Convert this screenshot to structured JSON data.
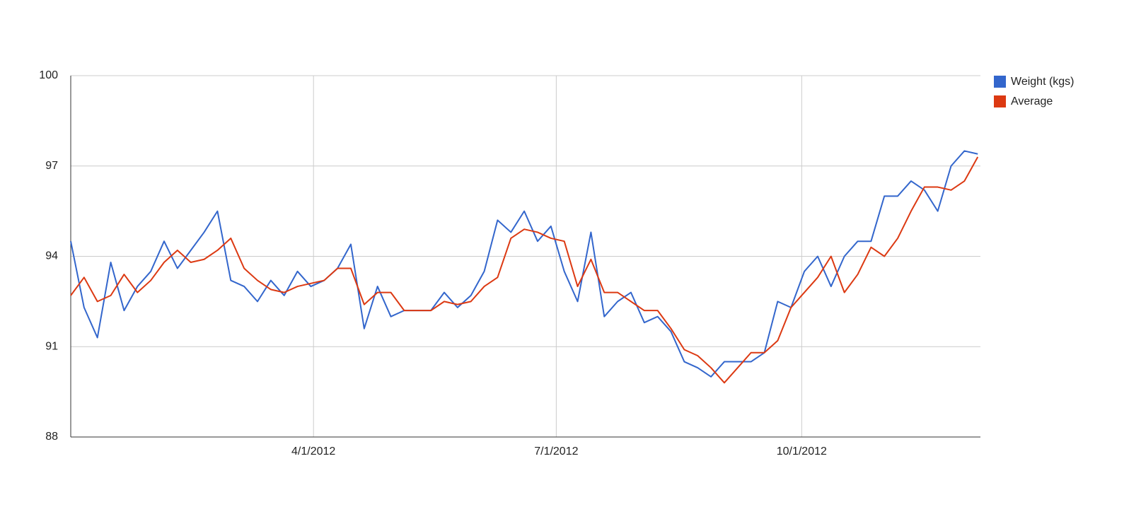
{
  "chart_data": {
    "type": "line",
    "x": [
      "2012-01-01",
      "2012-01-06",
      "2012-01-11",
      "2012-01-16",
      "2012-01-21",
      "2012-01-26",
      "2012-01-31",
      "2012-02-05",
      "2012-02-10",
      "2012-02-15",
      "2012-02-20",
      "2012-02-25",
      "2012-03-01",
      "2012-03-06",
      "2012-03-11",
      "2012-03-16",
      "2012-03-21",
      "2012-03-26",
      "2012-03-31",
      "2012-04-05",
      "2012-04-10",
      "2012-04-15",
      "2012-04-20",
      "2012-04-25",
      "2012-04-30",
      "2012-05-05",
      "2012-05-10",
      "2012-05-15",
      "2012-05-20",
      "2012-05-25",
      "2012-05-30",
      "2012-06-04",
      "2012-06-09",
      "2012-06-14",
      "2012-06-19",
      "2012-06-24",
      "2012-06-29",
      "2012-07-04",
      "2012-07-09",
      "2012-07-14",
      "2012-07-19",
      "2012-07-24",
      "2012-07-29",
      "2012-08-03",
      "2012-08-08",
      "2012-08-13",
      "2012-08-18",
      "2012-08-23",
      "2012-08-28",
      "2012-09-02",
      "2012-09-07",
      "2012-09-12",
      "2012-09-17",
      "2012-09-22",
      "2012-09-27",
      "2012-10-02",
      "2012-10-07",
      "2012-10-12",
      "2012-10-17",
      "2012-10-22",
      "2012-10-27",
      "2012-11-01",
      "2012-11-06",
      "2012-11-11",
      "2012-11-16",
      "2012-11-21",
      "2012-11-26",
      "2012-12-01",
      "2012-12-06"
    ],
    "series": [
      {
        "name": "Weight (kgs)",
        "color": "#3366cc",
        "values": [
          94.5,
          92.3,
          91.3,
          93.8,
          92.2,
          93.0,
          93.5,
          94.5,
          93.6,
          94.2,
          94.8,
          95.5,
          93.2,
          93.0,
          92.5,
          93.2,
          92.7,
          93.5,
          93.0,
          93.2,
          93.6,
          94.4,
          91.6,
          93.0,
          92.0,
          92.2,
          92.2,
          92.2,
          92.8,
          92.3,
          92.7,
          93.5,
          95.2,
          94.8,
          95.5,
          94.5,
          95.0,
          93.5,
          92.5,
          94.8,
          92.0,
          92.5,
          92.8,
          91.8,
          92.0,
          91.5,
          90.5,
          90.3,
          90.0,
          90.5,
          90.5,
          90.5,
          90.8,
          92.5,
          92.3,
          93.5,
          94.0,
          93.0,
          94.0,
          94.5,
          94.5,
          96.0,
          96.0,
          96.5,
          96.2,
          95.5,
          97.0,
          97.5,
          97.4
        ]
      },
      {
        "name": "Average",
        "color": "#dc3912",
        "values": [
          92.7,
          93.3,
          92.5,
          92.7,
          93.4,
          92.8,
          93.2,
          93.8,
          94.2,
          93.8,
          93.9,
          94.2,
          94.6,
          93.6,
          93.2,
          92.9,
          92.8,
          93.0,
          93.1,
          93.2,
          93.6,
          93.6,
          92.4,
          92.8,
          92.8,
          92.2,
          92.2,
          92.2,
          92.5,
          92.4,
          92.5,
          93.0,
          93.3,
          94.6,
          94.9,
          94.8,
          94.6,
          94.5,
          93.0,
          93.9,
          92.8,
          92.8,
          92.5,
          92.2,
          92.2,
          91.6,
          90.9,
          90.7,
          90.3,
          89.8,
          90.3,
          90.8,
          90.8,
          91.2,
          92.3,
          92.8,
          93.3,
          94.0,
          92.8,
          93.4,
          94.3,
          94.0,
          94.6,
          95.5,
          96.3,
          96.3,
          96.2,
          96.5,
          97.3
        ]
      }
    ],
    "xlim": [
      "2012-01-01",
      "2012-12-07"
    ],
    "xticks": [
      {
        "value": "2012-04-01",
        "label": "4/1/2012"
      },
      {
        "value": "2012-07-01",
        "label": "7/1/2012"
      },
      {
        "value": "2012-10-01",
        "label": "10/1/2012"
      }
    ],
    "ylim": [
      88,
      100
    ],
    "yticks": [
      88,
      91,
      94,
      97,
      100
    ],
    "grid": true,
    "legend": "right"
  }
}
